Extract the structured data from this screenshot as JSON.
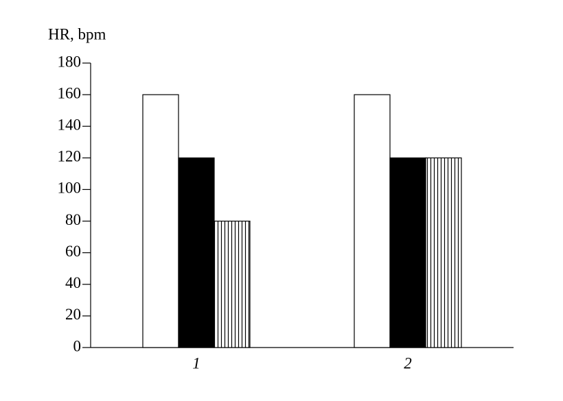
{
  "chart_data": {
    "type": "bar",
    "y_label": "HR, bpm",
    "categories": [
      "1",
      "2"
    ],
    "series": [
      {
        "color": "#ffffff",
        "values": [
          160,
          160
        ]
      },
      {
        "color": "#000000",
        "values": [
          120,
          120
        ]
      },
      {
        "color": "#000000",
        "hatch": "vertical",
        "values": [
          80,
          120
        ]
      }
    ],
    "ylim": [
      0,
      180
    ],
    "yticks": [
      0,
      20,
      40,
      60,
      80,
      100,
      120,
      140,
      160,
      180
    ],
    "grid": false
  }
}
